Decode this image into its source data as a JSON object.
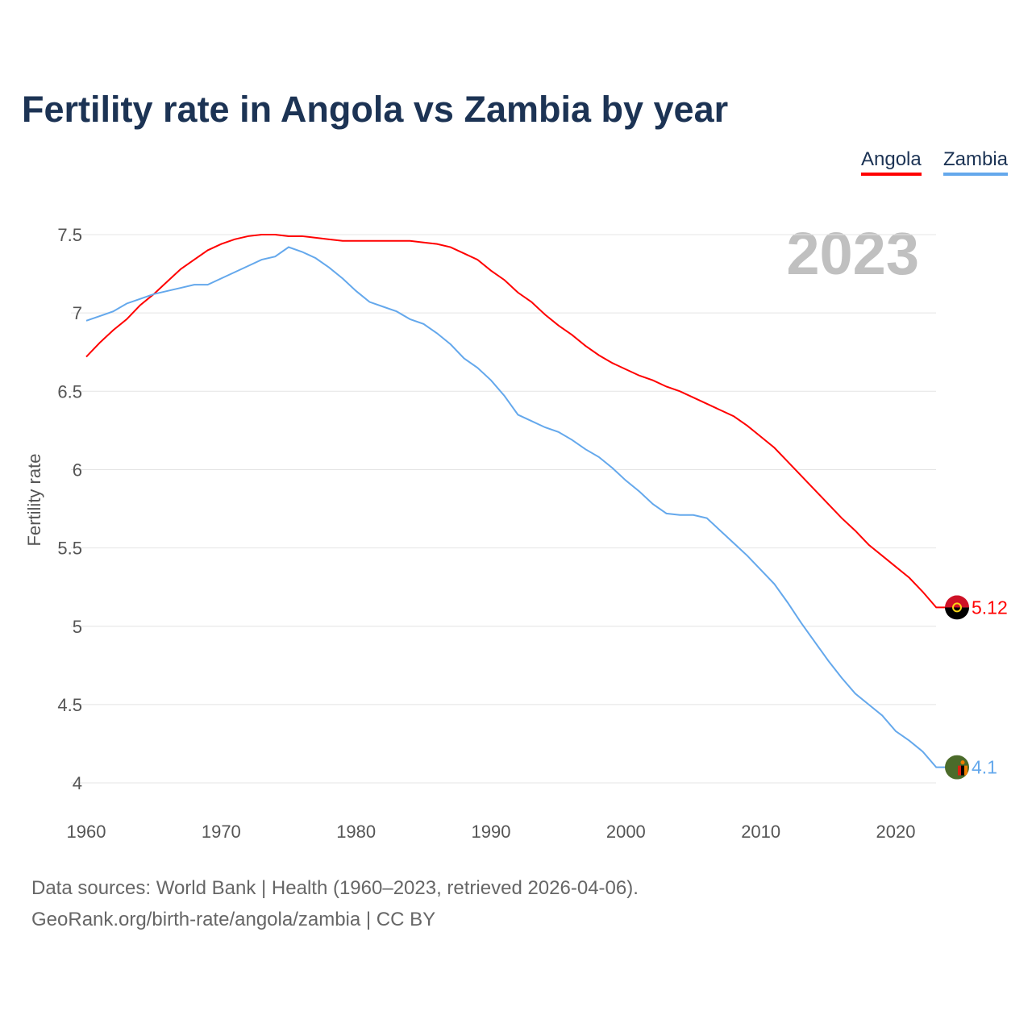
{
  "title": "Fertility rate in Angola vs Zambia by year",
  "legend": [
    "Angola",
    "Zambia"
  ],
  "year_label": "2023",
  "footer": {
    "line1": "Data sources: World Bank | Health (1960–2023, retrieved 2026-04-06).",
    "line2": "GeoRank.org/birth-rate/angola/zambia | CC BY"
  },
  "chart_data": {
    "type": "line",
    "title": "Fertility rate in Angola vs Zambia by year",
    "xlabel": "",
    "ylabel": "Fertility rate",
    "xlim": [
      1960,
      2023
    ],
    "ylim": [
      4,
      7.5
    ],
    "xticks": [
      "1960",
      "1970",
      "1980",
      "1990",
      "2000",
      "2010",
      "2020"
    ],
    "yticks": [
      "7.5",
      "7",
      "6.5",
      "6",
      "5.5",
      "5",
      "4.5",
      "4"
    ],
    "grid": true,
    "legend_position": "top-right",
    "x_start": 1960,
    "series": [
      {
        "name": "Angola",
        "color": "#ff0000",
        "end_label": "5.12",
        "flag": "angola-flag",
        "values": [
          6.72,
          6.81,
          6.89,
          6.96,
          7.05,
          7.12,
          7.2,
          7.28,
          7.34,
          7.4,
          7.44,
          7.47,
          7.49,
          7.5,
          7.5,
          7.49,
          7.49,
          7.48,
          7.47,
          7.46,
          7.46,
          7.46,
          7.46,
          7.46,
          7.46,
          7.45,
          7.44,
          7.42,
          7.38,
          7.34,
          7.27,
          7.21,
          7.13,
          7.07,
          6.99,
          6.92,
          6.86,
          6.79,
          6.73,
          6.68,
          6.64,
          6.6,
          6.57,
          6.53,
          6.5,
          6.46,
          6.42,
          6.38,
          6.34,
          6.28,
          6.21,
          6.14,
          6.05,
          5.96,
          5.87,
          5.78,
          5.69,
          5.61,
          5.52,
          5.45,
          5.38,
          5.31,
          5.22,
          5.12
        ]
      },
      {
        "name": "Zambia",
        "color": "#64a8ec",
        "end_label": "4.1",
        "flag": "zambia-flag",
        "values": [
          6.95,
          6.98,
          7.01,
          7.06,
          7.09,
          7.12,
          7.14,
          7.16,
          7.18,
          7.18,
          7.22,
          7.26,
          7.3,
          7.34,
          7.36,
          7.42,
          7.39,
          7.35,
          7.29,
          7.22,
          7.14,
          7.07,
          7.04,
          7.01,
          6.96,
          6.93,
          6.87,
          6.8,
          6.71,
          6.65,
          6.57,
          6.47,
          6.35,
          6.31,
          6.27,
          6.24,
          6.19,
          6.13,
          6.08,
          6.01,
          5.93,
          5.86,
          5.78,
          5.72,
          5.71,
          5.71,
          5.69,
          5.61,
          5.53,
          5.45,
          5.36,
          5.27,
          5.15,
          5.02,
          4.9,
          4.78,
          4.67,
          4.57,
          4.5,
          4.43,
          4.33,
          4.27,
          4.2,
          4.1
        ]
      }
    ]
  }
}
